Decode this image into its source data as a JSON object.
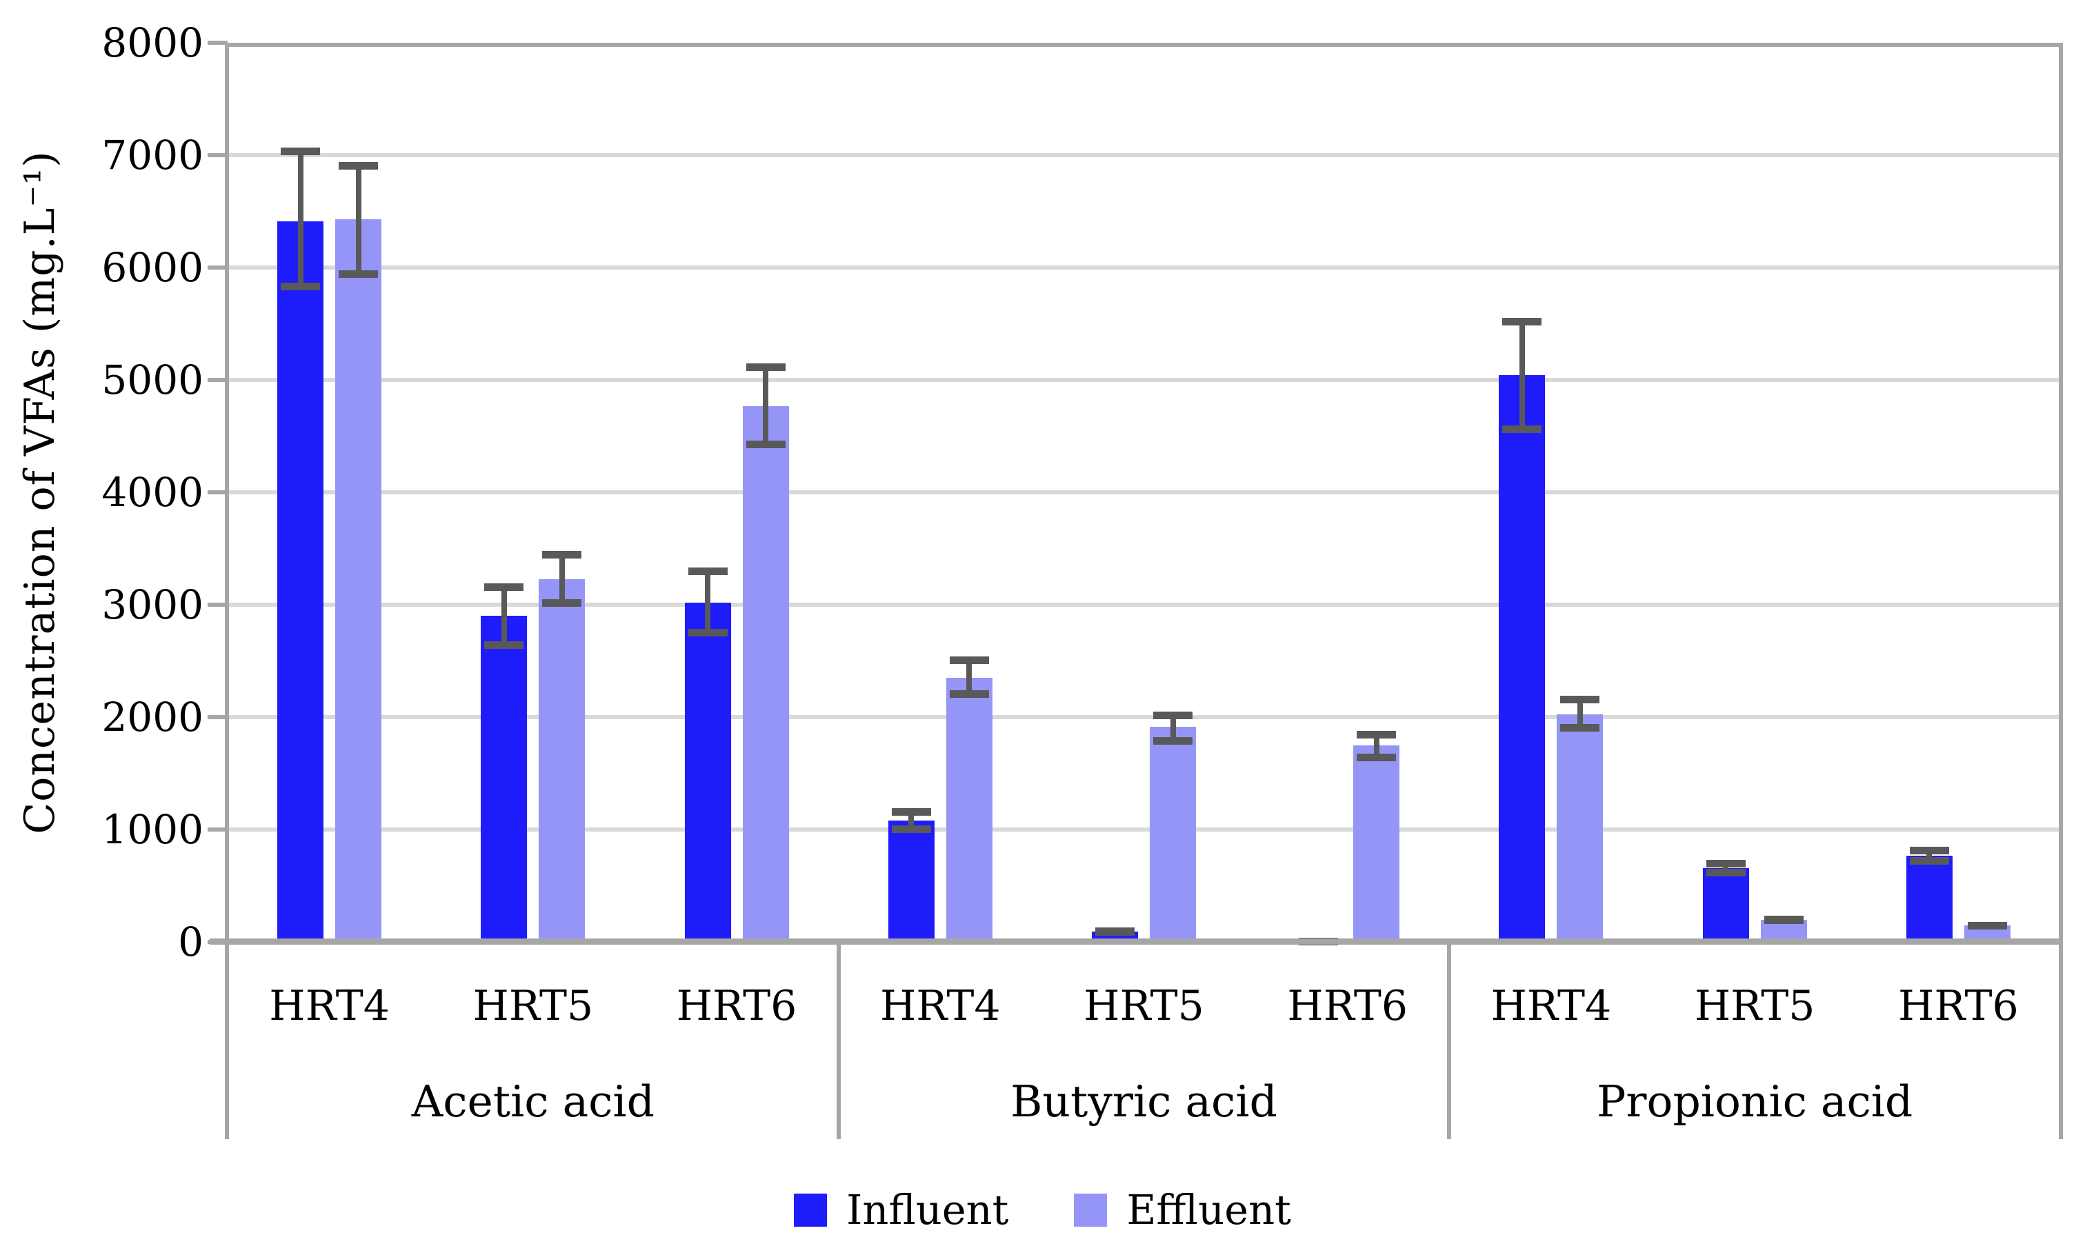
{
  "figure": {
    "background": "#FFFFFF"
  },
  "chart_data": {
    "type": "bar",
    "title": "",
    "ylabel": "Concentration of VFAs (mg.L⁻¹)",
    "ylim": [
      0,
      8000
    ],
    "ytick_interval": 1000,
    "yticks": [
      0,
      1000,
      2000,
      3000,
      4000,
      5000,
      6000,
      7000,
      8000
    ],
    "grid": "horizontal",
    "legend_position": "bottom",
    "groups": [
      "Acetic acid",
      "Butyric acid",
      "Propionic acid"
    ],
    "categories": [
      "HRT4",
      "HRT5",
      "HRT6"
    ],
    "series": [
      {
        "name": "Influent",
        "color": "#1E1CFA",
        "values": [
          [
            6410,
            2900,
            3020
          ],
          [
            1080,
            90,
            15
          ],
          [
            5040,
            655,
            765
          ]
        ],
        "error_low": [
          [
            5800,
            2610,
            2720
          ],
          [
            970,
            55,
            5
          ],
          [
            4530,
            580,
            685
          ]
        ],
        "error_high": [
          [
            7070,
            3190,
            3330
          ],
          [
            1190,
            130,
            35
          ],
          [
            5550,
            730,
            845
          ]
        ]
      },
      {
        "name": "Effluent",
        "color": "#9595F8",
        "values": [
          [
            6430,
            3230,
            4770
          ],
          [
            2350,
            1915,
            1750
          ],
          [
            2025,
            195,
            145
          ]
        ],
        "error_low": [
          [
            5910,
            2980,
            4390
          ],
          [
            2170,
            1755,
            1610
          ],
          [
            1870,
            160,
            110
          ]
        ],
        "error_high": [
          [
            6940,
            3480,
            5150
          ],
          [
            2540,
            2050,
            1880
          ],
          [
            2190,
            235,
            180
          ]
        ]
      }
    ],
    "error_bar_color": "#595959",
    "gridline_color": "#D9D9D9",
    "axis_color": "#A6A6A6"
  }
}
